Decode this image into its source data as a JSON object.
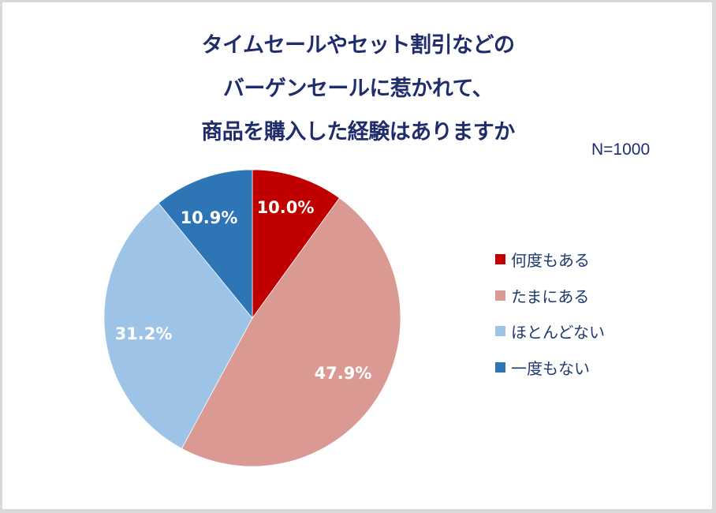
{
  "chart_data": {
    "type": "pie",
    "title": "タイムセールやセット割引などのバーゲンセールに惹かれて、商品を購入した経験はありますか",
    "title_lines": [
      "タイムセールやセット割引などの",
      "バーゲンセールに惹かれて、",
      "商品を購入した経験はありますか"
    ],
    "annotation": "N=1000",
    "categories": [
      "何度もある",
      "たまにある",
      "ほとんどない",
      "一度もない"
    ],
    "values": [
      10.0,
      47.9,
      31.2,
      10.9
    ],
    "value_labels": [
      "10.0%",
      "47.9%",
      "31.2%",
      "10.9%"
    ],
    "colors": [
      "#c00000",
      "#da9a93",
      "#9dc3e6",
      "#2e75b6"
    ],
    "start_angle_deg": 0,
    "direction": "clockwise",
    "legend_position": "right",
    "unit": "%"
  },
  "legend": {
    "items": [
      {
        "label": "何度もある",
        "color": "#c00000"
      },
      {
        "label": "たまにある",
        "color": "#da9a93"
      },
      {
        "label": "ほとんどない",
        "color": "#9dc3e6"
      },
      {
        "label": "一度もない",
        "color": "#2e75b6"
      }
    ]
  }
}
